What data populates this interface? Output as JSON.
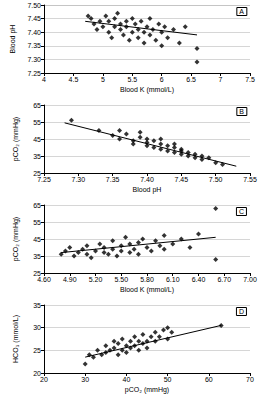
{
  "chart_data": [
    {
      "type": "scatter",
      "title": "A",
      "x_label": "Blood K (mmol/L)",
      "y_label": "Blood pH",
      "marker": "diamond",
      "color": "#000000",
      "grid": true,
      "xlim": [
        4,
        7.5
      ],
      "xticks": [
        4,
        4.5,
        5,
        5.5,
        6,
        6.5,
        7,
        7.5
      ],
      "ylim": [
        7.25,
        7.5
      ],
      "yticks": [
        7.25,
        {
          "value": 7.3,
          "label": "7.30"
        },
        7.35,
        {
          "value": 7.4,
          "label": "7.40"
        },
        7.45,
        {
          "value": 7.5,
          "label": "7.50"
        }
      ],
      "x": [
        4.75,
        4.8,
        4.85,
        4.9,
        4.95,
        5.0,
        5.05,
        5.1,
        5.1,
        5.15,
        5.2,
        5.2,
        5.25,
        5.3,
        5.3,
        5.35,
        5.4,
        5.4,
        5.45,
        5.5,
        5.5,
        5.55,
        5.6,
        5.6,
        5.65,
        5.7,
        5.7,
        5.75,
        5.8,
        5.8,
        5.85,
        5.9,
        5.95,
        6.0,
        6.0,
        6.05,
        6.1,
        6.2,
        6.3,
        6.4,
        6.6,
        6.6
      ],
      "values": [
        7.46,
        7.45,
        7.43,
        7.41,
        7.44,
        7.42,
        7.46,
        7.4,
        7.44,
        7.38,
        7.42,
        7.45,
        7.47,
        7.41,
        7.43,
        7.39,
        7.44,
        7.42,
        7.37,
        7.4,
        7.45,
        7.43,
        7.38,
        7.41,
        7.44,
        7.4,
        7.36,
        7.42,
        7.39,
        7.45,
        7.41,
        7.37,
        7.43,
        7.4,
        7.35,
        7.42,
        7.38,
        7.41,
        7.36,
        7.42,
        7.29,
        7.34
      ],
      "trendline": {
        "x": [
          4.7,
          6.6
        ],
        "values": [
          7.44,
          7.39
        ]
      }
    },
    {
      "type": "scatter",
      "title": "B",
      "x_label": "Blood pH",
      "y_label": "pCO₂ (mmHg)",
      "marker": "diamond",
      "color": "#000000",
      "grid": true,
      "xlim": [
        7.25,
        7.55
      ],
      "xticks": [
        7.25,
        {
          "value": 7.3,
          "label": "7.30"
        },
        7.35,
        {
          "value": 7.4,
          "label": "7.40"
        },
        7.45,
        {
          "value": 7.5,
          "label": "7.50"
        },
        7.55
      ],
      "ylim": [
        25,
        65
      ],
      "yticks": [
        25,
        35,
        45,
        55,
        65
      ],
      "x": [
        7.29,
        7.33,
        7.35,
        7.36,
        7.37,
        7.38,
        7.38,
        7.39,
        7.4,
        7.4,
        7.41,
        7.41,
        7.42,
        7.42,
        7.43,
        7.43,
        7.44,
        7.44,
        7.45,
        7.45,
        7.45,
        7.46,
        7.46,
        7.47,
        7.47,
        7.48,
        7.48,
        7.49,
        7.5,
        7.51,
        7.4,
        7.39,
        7.36,
        7.44,
        7.42
      ],
      "values": [
        56,
        50,
        47,
        45,
        48,
        44,
        42,
        46,
        43,
        41,
        44,
        40,
        42,
        39,
        41,
        38,
        40,
        37,
        39,
        36,
        38,
        37,
        35,
        36,
        34,
        35,
        33,
        34,
        31,
        30,
        45,
        49,
        50,
        42,
        45
      ],
      "trendline": {
        "x": [
          7.28,
          7.53
        ],
        "values": [
          54.5,
          29
        ]
      }
    },
    {
      "type": "scatter",
      "title": "C",
      "x_label": "Blood K (mmol/L)",
      "y_label": "pCO₂ (mmHg)",
      "marker": "diamond",
      "color": "#000000",
      "grid": true,
      "xlim": [
        4.6,
        7.0
      ],
      "xticks": [
        {
          "value": 4.6,
          "label": "4.60"
        },
        {
          "value": 4.9,
          "label": "4.90"
        },
        {
          "value": 5.2,
          "label": "5.20"
        },
        {
          "value": 5.5,
          "label": "5.50"
        },
        {
          "value": 5.8,
          "label": "5.80"
        },
        {
          "value": 6.1,
          "label": "6.10"
        },
        {
          "value": 6.4,
          "label": "6.40"
        },
        {
          "value": 6.7,
          "label": "6.70"
        },
        {
          "value": 7.0,
          "label": "7.00"
        }
      ],
      "ylim": [
        25,
        65
      ],
      "yticks": [
        25,
        35,
        45,
        55,
        65
      ],
      "x": [
        4.8,
        4.85,
        4.9,
        4.95,
        5.0,
        5.05,
        5.1,
        5.1,
        5.15,
        5.2,
        5.25,
        5.3,
        5.3,
        5.35,
        5.4,
        5.4,
        5.45,
        5.5,
        5.5,
        5.55,
        5.6,
        5.6,
        5.65,
        5.7,
        5.7,
        5.75,
        5.8,
        5.85,
        5.9,
        5.95,
        6.0,
        6.0,
        6.1,
        6.2,
        6.3,
        6.4,
        6.6,
        6.6
      ],
      "values": [
        36,
        38,
        40,
        35,
        37,
        39,
        41,
        36,
        34,
        38,
        42,
        37,
        40,
        36,
        39,
        44,
        35,
        38,
        41,
        46,
        37,
        42,
        39,
        43,
        36,
        45,
        40,
        38,
        44,
        41,
        47,
        39,
        42,
        45,
        40,
        48,
        63,
        33
      ],
      "trendline": {
        "x": [
          4.8,
          6.6
        ],
        "values": [
          37,
          46
        ]
      }
    },
    {
      "type": "scatter",
      "title": "D",
      "x_label": "pCO₂ (mmHg)",
      "y_label": "HCO₃ (mmol/L)",
      "marker": "diamond",
      "color": "#000000",
      "grid": true,
      "xlim": [
        20,
        70
      ],
      "xticks": [
        20,
        30,
        40,
        50,
        60,
        70
      ],
      "ylim": [
        20,
        35
      ],
      "yticks": [
        20,
        25,
        30,
        35
      ],
      "x": [
        30,
        31,
        32,
        33,
        34,
        35,
        35,
        36,
        37,
        37,
        38,
        38,
        39,
        39,
        40,
        40,
        41,
        41,
        42,
        42,
        43,
        43,
        44,
        44,
        45,
        45,
        46,
        47,
        47,
        48,
        49,
        50,
        50,
        51,
        63
      ],
      "values": [
        22,
        24,
        23.5,
        25,
        24,
        26,
        24.5,
        25,
        27,
        25.5,
        24,
        26.5,
        25,
        27.5,
        26,
        24.5,
        27,
        25.5,
        26,
        28,
        25,
        27,
        26.5,
        28.5,
        27,
        25.5,
        28,
        27,
        29,
        28,
        29.5,
        27.5,
        30,
        29,
        30.5
      ],
      "trendline": {
        "x": [
          30,
          63
        ],
        "values": [
          23.5,
          30.5
        ]
      }
    }
  ]
}
